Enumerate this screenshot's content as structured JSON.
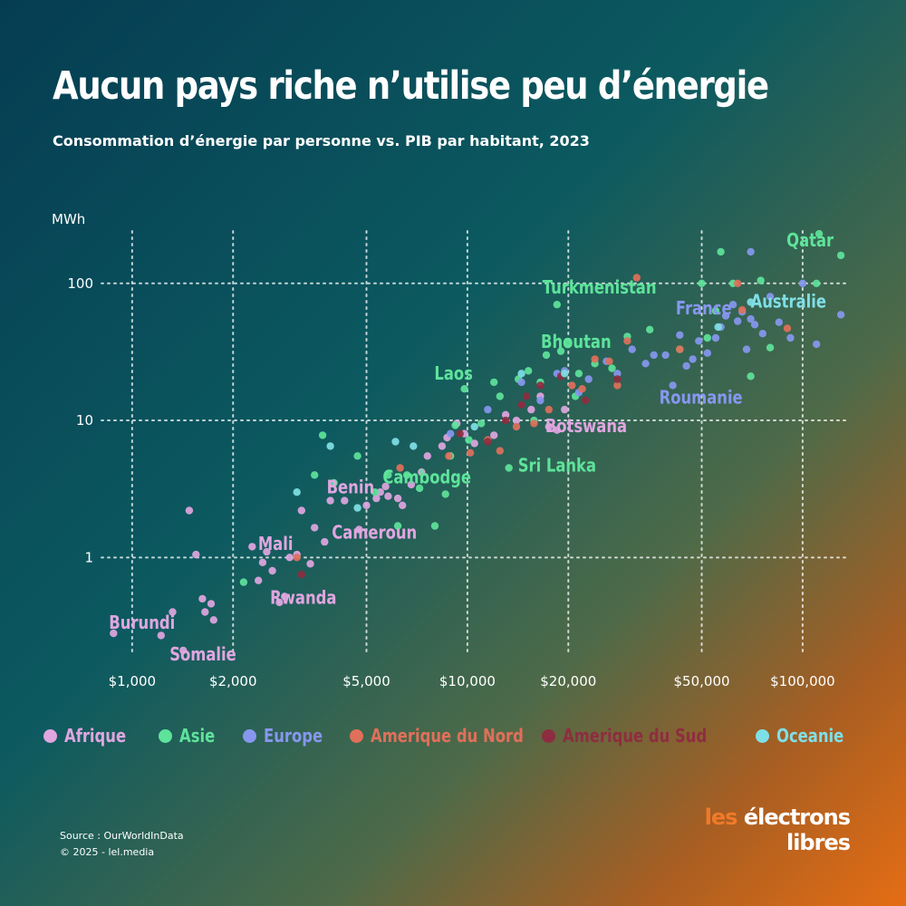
{
  "title": "Aucun pays riche n’utilise peu d’énergie",
  "subtitle": "Consommation d’énergie par personne vs. PIB par habitant, 2023",
  "footer": {
    "source": "Source : OurWorldInData",
    "copyright": "© 2025 - lel.media"
  },
  "logo": {
    "line1_prefix": "les",
    "line1_main": "électrons",
    "line2": "libres"
  },
  "colors": {
    "Afrique": "#e0a6e0",
    "Asie": "#5ee39a",
    "Europe": "#8797ef",
    "Amerique du Nord": "#e0705a",
    "Amerique du Sud": "#8e2d40",
    "Oceanie": "#7fdfe6"
  },
  "legend": [
    {
      "name": "Afrique",
      "color": "#e0a6e0"
    },
    {
      "name": "Asie",
      "color": "#5ee39a"
    },
    {
      "name": "Europe",
      "color": "#8797ef"
    },
    {
      "name": "Amerique du Nord",
      "color": "#e0705a"
    },
    {
      "name": "Amerique du Sud",
      "color": "#8e2d40"
    },
    {
      "name": "Oceanie",
      "color": "#7fdfe6"
    }
  ],
  "chart_data": {
    "type": "scatter",
    "title": "Aucun pays riche n’utilise peu d’énergie",
    "subtitle": "Consommation d’énergie par personne vs. PIB par habitant, 2023",
    "ylabel": "MWh",
    "xscale": "log",
    "yscale": "log",
    "xlim": [
      800,
      140000
    ],
    "ylim": [
      0.18,
      260
    ],
    "x_ticks": [
      {
        "value": 1000,
        "label": "$1,000"
      },
      {
        "value": 2000,
        "label": "$2,000"
      },
      {
        "value": 5000,
        "label": "$5,000"
      },
      {
        "value": 10000,
        "label": "$10,000"
      },
      {
        "value": 20000,
        "label": "$20,000"
      },
      {
        "value": 50000,
        "label": "$50,000"
      },
      {
        "value": 100000,
        "label": "$100,000"
      }
    ],
    "y_ticks": [
      {
        "value": 1,
        "label": "1"
      },
      {
        "value": 10,
        "label": "10"
      },
      {
        "value": 100,
        "label": "100"
      }
    ],
    "grid": true,
    "legend_position": "bottom",
    "series": [
      {
        "name": "Afrique",
        "points": [
          [
            880,
            0.28
          ],
          [
            1220,
            0.27
          ],
          [
            1320,
            0.4
          ],
          [
            1420,
            0.21
          ],
          [
            1480,
            2.2
          ],
          [
            1550,
            1.05
          ],
          [
            1620,
            0.5
          ],
          [
            1650,
            0.4
          ],
          [
            1720,
            0.46
          ],
          [
            1750,
            0.35
          ],
          [
            2280,
            1.2
          ],
          [
            2380,
            0.68
          ],
          [
            2450,
            0.92
          ],
          [
            2520,
            1.1
          ],
          [
            2620,
            0.8
          ],
          [
            2750,
            0.47
          ],
          [
            2850,
            0.52
          ],
          [
            2950,
            1.0
          ],
          [
            3100,
            1.05
          ],
          [
            3400,
            0.9
          ],
          [
            3200,
            2.2
          ],
          [
            3500,
            1.65
          ],
          [
            3750,
            1.3
          ],
          [
            3900,
            2.6
          ],
          [
            4300,
            2.6
          ],
          [
            4750,
            1.6
          ],
          [
            5000,
            2.4
          ],
          [
            5350,
            2.7
          ],
          [
            5500,
            3.0
          ],
          [
            5700,
            3.3
          ],
          [
            5800,
            2.8
          ],
          [
            6200,
            2.7
          ],
          [
            6400,
            2.4
          ],
          [
            6800,
            3.4
          ],
          [
            7300,
            4.2
          ],
          [
            7600,
            5.5
          ],
          [
            8400,
            6.5
          ],
          [
            8700,
            7.5
          ],
          [
            9300,
            9.5
          ],
          [
            9800,
            8.0
          ],
          [
            10500,
            6.8
          ],
          [
            12000,
            7.8
          ],
          [
            13000,
            11
          ],
          [
            14000,
            10
          ],
          [
            15500,
            12
          ],
          [
            16500,
            15
          ],
          [
            17500,
            9.0
          ],
          [
            18500,
            8.5
          ],
          [
            19500,
            12
          ]
        ]
      },
      {
        "name": "Asie",
        "points": [
          [
            2150,
            0.66
          ],
          [
            3500,
            4.0
          ],
          [
            3700,
            7.8
          ],
          [
            4000,
            3.5
          ],
          [
            4700,
            5.5
          ],
          [
            5300,
            3.0
          ],
          [
            5800,
            4.0
          ],
          [
            6200,
            1.7
          ],
          [
            6600,
            4.0
          ],
          [
            7200,
            3.2
          ],
          [
            8000,
            1.7
          ],
          [
            8600,
            2.9
          ],
          [
            8900,
            5.5
          ],
          [
            9200,
            9.2
          ],
          [
            9800,
            17
          ],
          [
            10100,
            7.2
          ],
          [
            11000,
            9.5
          ],
          [
            12000,
            19
          ],
          [
            12500,
            15
          ],
          [
            13300,
            4.5
          ],
          [
            14200,
            20
          ],
          [
            15200,
            23
          ],
          [
            15800,
            10
          ],
          [
            16500,
            19
          ],
          [
            17200,
            30
          ],
          [
            18500,
            70
          ],
          [
            19000,
            32
          ],
          [
            20000,
            37
          ],
          [
            21000,
            15
          ],
          [
            21500,
            22
          ],
          [
            24000,
            26
          ],
          [
            27000,
            24
          ],
          [
            30000,
            41
          ],
          [
            35000,
            46
          ],
          [
            43000,
            33
          ],
          [
            50000,
            100
          ],
          [
            52000,
            40
          ],
          [
            55000,
            63
          ],
          [
            57000,
            170
          ],
          [
            62000,
            100
          ],
          [
            70000,
            21
          ],
          [
            75000,
            105
          ],
          [
            80000,
            34
          ],
          [
            110000,
            100
          ],
          [
            112000,
            230
          ],
          [
            130000,
            160
          ]
        ]
      },
      {
        "name": "Europe",
        "points": [
          [
            8900,
            8
          ],
          [
            11500,
            12
          ],
          [
            14500,
            19
          ],
          [
            16500,
            14
          ],
          [
            18500,
            22
          ],
          [
            19500,
            23
          ],
          [
            21500,
            16
          ],
          [
            23000,
            20
          ],
          [
            26000,
            27
          ],
          [
            28000,
            22
          ],
          [
            31000,
            33
          ],
          [
            34000,
            26
          ],
          [
            36000,
            30
          ],
          [
            39000,
            30
          ],
          [
            41000,
            18
          ],
          [
            43000,
            42
          ],
          [
            45000,
            25
          ],
          [
            47000,
            28
          ],
          [
            49000,
            38
          ],
          [
            52000,
            31
          ],
          [
            55000,
            40
          ],
          [
            57000,
            48
          ],
          [
            59000,
            58
          ],
          [
            62000,
            70
          ],
          [
            64000,
            53
          ],
          [
            66000,
            62
          ],
          [
            68000,
            33
          ],
          [
            70000,
            55
          ],
          [
            72000,
            50
          ],
          [
            76000,
            43
          ],
          [
            80000,
            80
          ],
          [
            85000,
            52
          ],
          [
            92000,
            40
          ],
          [
            100000,
            100
          ],
          [
            110000,
            36
          ],
          [
            130000,
            59
          ],
          [
            70000,
            170
          ]
        ]
      },
      {
        "name": "Amerique du Nord",
        "points": [
          [
            3100,
            1.0
          ],
          [
            6300,
            4.5
          ],
          [
            8800,
            5.5
          ],
          [
            10200,
            5.8
          ],
          [
            11500,
            7.2
          ],
          [
            12500,
            6.0
          ],
          [
            14000,
            9.0
          ],
          [
            15800,
            9.5
          ],
          [
            17500,
            12
          ],
          [
            20500,
            18
          ],
          [
            22000,
            17
          ],
          [
            24000,
            28
          ],
          [
            26500,
            27
          ],
          [
            28000,
            18
          ],
          [
            30000,
            38
          ],
          [
            32000,
            110
          ],
          [
            43000,
            33
          ],
          [
            66000,
            64
          ],
          [
            90000,
            47
          ],
          [
            64000,
            100
          ]
        ]
      },
      {
        "name": "Amerique du Sud",
        "points": [
          [
            3200,
            0.75
          ],
          [
            9500,
            8.0
          ],
          [
            11500,
            7.0
          ],
          [
            13000,
            10
          ],
          [
            14500,
            13
          ],
          [
            15000,
            15
          ],
          [
            16500,
            18
          ],
          [
            19000,
            21
          ],
          [
            22500,
            14
          ],
          [
            28000,
            20
          ]
        ]
      },
      {
        "name": "Oceanie",
        "points": [
          [
            3100,
            3.0
          ],
          [
            3900,
            6.5
          ],
          [
            4700,
            2.3
          ],
          [
            6100,
            7.0
          ],
          [
            6900,
            6.5
          ],
          [
            10500,
            9.0
          ],
          [
            14500,
            22
          ],
          [
            19500,
            22
          ],
          [
            56000,
            48
          ],
          [
            70000,
            73
          ]
        ]
      }
    ],
    "annotations": [
      {
        "label": "Qatar",
        "region": "Asie",
        "x": 112000,
        "y": 230
      },
      {
        "label": "Turkmenistan",
        "region": "Asie",
        "x": 18500,
        "y": 70
      },
      {
        "label": "Australie",
        "region": "Oceanie",
        "x": 70000,
        "y": 73
      },
      {
        "label": "France",
        "region": "Europe",
        "x": 57000,
        "y": 48
      },
      {
        "label": "Bhoutan",
        "region": "Asie",
        "x": 17200,
        "y": 30
      },
      {
        "label": "Roumanie",
        "region": "Europe",
        "x": 41000,
        "y": 18
      },
      {
        "label": "Laos",
        "region": "Asie",
        "x": 9800,
        "y": 17
      },
      {
        "label": "Botswana",
        "region": "Afrique",
        "x": 17500,
        "y": 9.0
      },
      {
        "label": "Sri Lanka",
        "region": "Asie",
        "x": 13300,
        "y": 4.5
      },
      {
        "label": "Cambodge",
        "region": "Asie",
        "x": 5800,
        "y": 4.0
      },
      {
        "label": "Benin",
        "region": "Afrique",
        "x": 3900,
        "y": 2.6
      },
      {
        "label": "Cameroun",
        "region": "Afrique",
        "x": 4750,
        "y": 1.6
      },
      {
        "label": "Mali",
        "region": "Afrique",
        "x": 2450,
        "y": 0.92
      },
      {
        "label": "Rwanda",
        "region": "Afrique",
        "x": 2850,
        "y": 0.52
      },
      {
        "label": "Burundi",
        "region": "Afrique",
        "x": 880,
        "y": 0.28
      },
      {
        "label": "Somalie",
        "region": "Afrique",
        "x": 1420,
        "y": 0.21
      }
    ]
  }
}
